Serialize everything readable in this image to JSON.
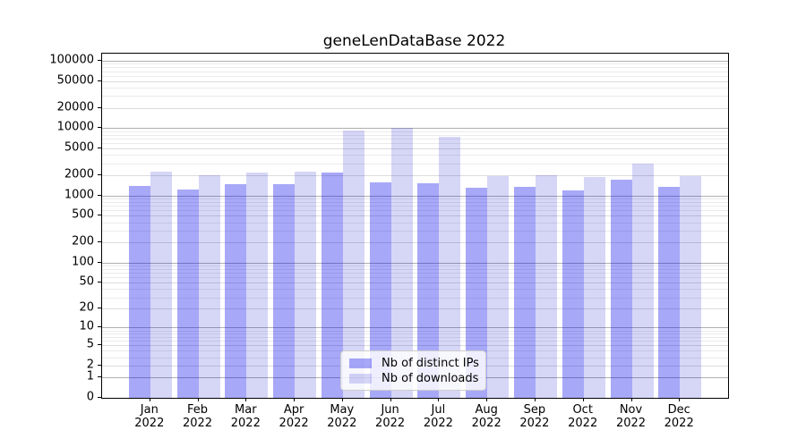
{
  "chart_data": {
    "type": "bar",
    "title": "geneLenDataBase 2022",
    "categories": [
      "Jan",
      "Feb",
      "Mar",
      "Apr",
      "May",
      "Jun",
      "Jul",
      "Aug",
      "Sep",
      "Oct",
      "Nov",
      "Dec"
    ],
    "year": "2022",
    "series": [
      {
        "name": "Nb of distinct IPs",
        "key": "distinct-ips",
        "color": "rgba(0,0,234,0.34)",
        "values": [
          1400,
          1240,
          1470,
          1480,
          2180,
          1570,
          1540,
          1300,
          1360,
          1190,
          1730,
          1360
        ]
      },
      {
        "name": "Nb of downloads",
        "key": "downloads",
        "color": "rgba(0,0,208,0.16)",
        "values": [
          2250,
          2000,
          2200,
          2230,
          9300,
          10200,
          7350,
          1930,
          2030,
          1870,
          3000,
          1960
        ]
      }
    ],
    "yscale": "log1p",
    "yticks": [
      100000,
      50000,
      20000,
      10000,
      5000,
      2000,
      1000,
      500,
      200,
      100,
      50,
      20,
      10,
      5,
      2,
      1,
      0
    ],
    "ylim": [
      0,
      127000
    ],
    "xlabel": "",
    "ylabel": "",
    "grid": "both",
    "legend_position": "lower-center"
  }
}
